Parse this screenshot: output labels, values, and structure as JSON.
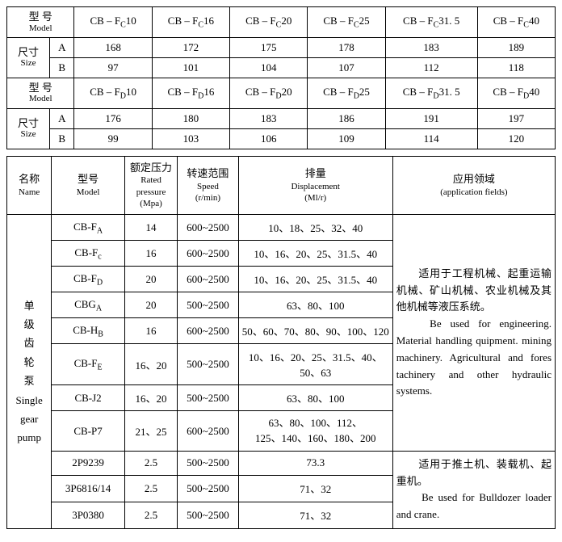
{
  "table1": {
    "modelLabel": "型 号",
    "modelLabelEn": "Model",
    "sizeLabel": "尺寸",
    "sizeLabelEn": "Size",
    "rowA": "A",
    "rowB": "B",
    "models": [
      "CB – Fc10",
      "CB – Fc16",
      "CB – Fc20",
      "CB – Fc25",
      "CB – Fc31. 5",
      "CB – Fc40"
    ],
    "valuesA": [
      "168",
      "172",
      "175",
      "178",
      "183",
      "189"
    ],
    "valuesB": [
      "97",
      "101",
      "104",
      "107",
      "112",
      "118"
    ]
  },
  "table2": {
    "modelLabel": "型 号",
    "modelLabelEn": "Model",
    "sizeLabel": "尺寸",
    "sizeLabelEn": "Size",
    "rowA": "A",
    "rowB": "B",
    "models": [
      "CB – FD10",
      "CB – FD16",
      "CB – FD20",
      "CB – FD25",
      "CB – FD31. 5",
      "CB – FD40"
    ],
    "valuesA": [
      "176",
      "180",
      "183",
      "186",
      "191",
      "197"
    ],
    "valuesB": [
      "99",
      "103",
      "106",
      "109",
      "114",
      "120"
    ]
  },
  "spec": {
    "headers": {
      "name": "名称",
      "nameEn": "Name",
      "model": "型号",
      "modelEn": "Model",
      "pressure": "额定压力",
      "pressureEn": "Rated pressure",
      "pressureUnit": "(Mpa)",
      "speed": "转速范围",
      "speedEn": "Speed",
      "speedUnit": "(r/min)",
      "disp": "排量",
      "dispEn": "Displacement",
      "dispUnit": "(Ml/r)",
      "app": "应用领域",
      "appEn": "(application fields)"
    },
    "category": {
      "cn": "单级齿轮泵",
      "en": "Single gear pump"
    },
    "rows": [
      {
        "model": "CB-FA",
        "pressure": "14",
        "speed": "600~2500",
        "disp": "10、18、25、32、40"
      },
      {
        "model": "CB-Fc",
        "pressure": "16",
        "speed": "600~2500",
        "disp": "10、16、20、25、31.5、40"
      },
      {
        "model": "CB-FD",
        "pressure": "20",
        "speed": "600~2500",
        "disp": "10、16、20、25、31.5、40"
      },
      {
        "model": "CBGA",
        "pressure": "20",
        "speed": "500~2500",
        "disp": "63、80、100"
      },
      {
        "model": "CB-HB",
        "pressure": "16",
        "speed": "600~2500",
        "disp": "50、60、70、80、90、100、120"
      },
      {
        "model": "CB-FE",
        "pressure": "16、20",
        "speed": "500~2500",
        "disp": "10、16、20、25、31.5、40、50、63"
      },
      {
        "model": "CB-J2",
        "pressure": "16、20",
        "speed": "500~2500",
        "disp": "63、80、100"
      },
      {
        "model": "CB-P7",
        "pressure": "21、25",
        "speed": "600~2500",
        "disp": "63、80、100、112、125、140、160、180、200"
      },
      {
        "model": "2P9239",
        "pressure": "2.5",
        "speed": "500~2500",
        "disp": "73.3"
      },
      {
        "model": "3P6816/14",
        "pressure": "2.5",
        "speed": "500~2500",
        "disp": "71、32"
      },
      {
        "model": "3P0380",
        "pressure": "2.5",
        "speed": "500~2500",
        "disp": "71、32"
      }
    ],
    "app1": "　　适用于工程机械、起重运输机械、矿山机械、农业机械及其他机械等液压系统。\n　　Be used for engineering. Material handling quipment. mining machinery. Agricultural and fores tachinery and other hydraulic systems.",
    "app2": "　　适用于推土机、装载机、起重机。\n　　Be used for Bulldozer loader and crane."
  }
}
